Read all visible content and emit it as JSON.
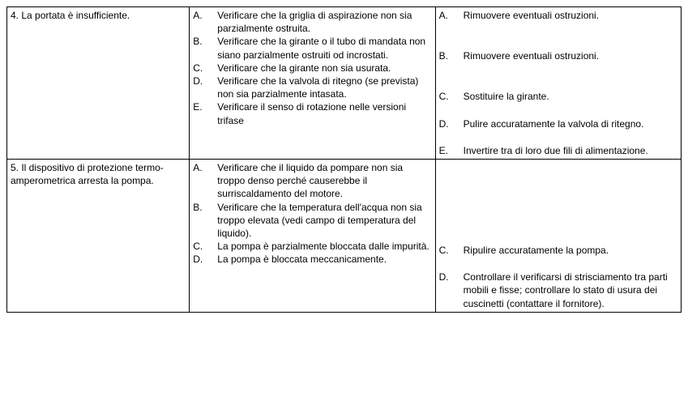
{
  "rows": [
    {
      "problem": "4. La portata è insufficiente.",
      "causes": [
        {
          "letter": "A.",
          "text": "Verificare che la griglia di aspirazione non sia parzialmente ostruita."
        },
        {
          "letter": "B.",
          "text": "Verificare che la girante o il tubo di mandata non siano parzialmente ostruiti od incrostati."
        },
        {
          "letter": "C.",
          "text": "Verificare che la girante non sia usurata."
        },
        {
          "letter": "D.",
          "text": "Verificare che la valvola di ritegno (se prevista) non sia parzialmente intasata."
        },
        {
          "letter": "E.",
          "text": "Verificare il senso di rotazione nelle versioni trifase"
        }
      ],
      "remedies": [
        {
          "letter": "A.",
          "text": "Rimuovere eventuali ostruzioni.",
          "padLines": 2
        },
        {
          "letter": "B.",
          "text": "Rimuovere eventuali ostruzioni.",
          "padLines": 2
        },
        {
          "letter": "C.",
          "text": "Sostituire la girante.",
          "padLines": 1
        },
        {
          "letter": "D.",
          "text": "Pulire accuratamente la valvola di ritegno.",
          "padLines": 1
        },
        {
          "letter": "E.",
          "text": "Invertire tra di loro due fili di alimentazione.",
          "padLines": 0
        }
      ]
    },
    {
      "problem": "5. Il dispositivo di protezione termo- amperometrica arresta la pompa.",
      "causes": [
        {
          "letter": "A.",
          "text": "Verificare che il liquido da pompare non sia troppo denso perché causerebbe il surriscaldamento del motore."
        },
        {
          "letter": "B.",
          "text": "Verificare che la temperatura dell'acqua non sia troppo elevata (vedi campo di temperatura del liquido)."
        },
        {
          "letter": "C.",
          "text": "La pompa è parzialmente bloccata dalle impurità."
        },
        {
          "letter": "D.",
          "text": "La pompa è bloccata meccanicamente."
        }
      ],
      "remedies": [
        {
          "letter": "",
          "text": "",
          "padLines": 3,
          "empty": true
        },
        {
          "letter": "",
          "text": "",
          "padLines": 3,
          "empty": true
        },
        {
          "letter": "C.",
          "text": "Ripulire accuratamente la pompa.",
          "padLines": 1
        },
        {
          "letter": "D.",
          "text": "Controllare il verificarsi di strisciamento tra parti mobili e fisse; controllare lo stato di usura dei cuscinetti (contattare il fornitore).",
          "padLines": 0
        }
      ]
    }
  ]
}
